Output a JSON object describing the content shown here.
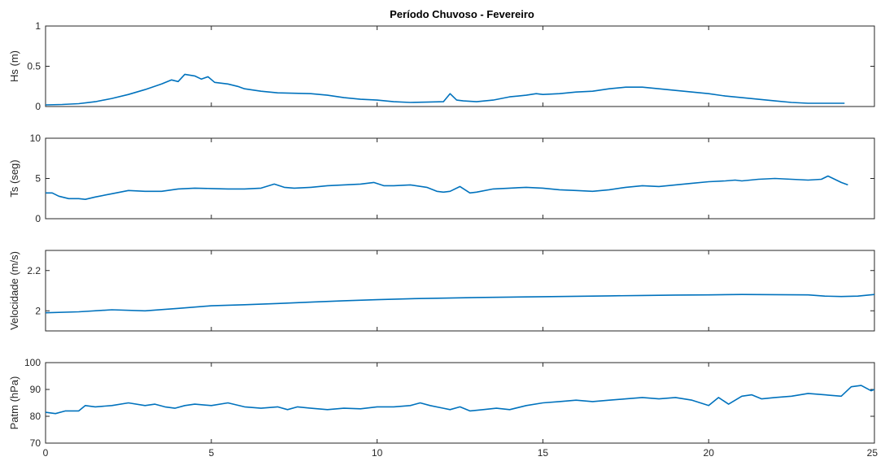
{
  "chart_data": {
    "type": "line",
    "title": "Período Chuvoso - Fevereiro",
    "line_color": "#0072BD",
    "grid": false,
    "xlim": [
      0,
      25
    ],
    "xticks": [
      0,
      5,
      10,
      15,
      20,
      25
    ],
    "panels": [
      {
        "ylabel": "Hs (m)",
        "ylim": [
          0,
          1
        ],
        "yticks": [
          0,
          0.5,
          1
        ],
        "ytick_labels": [
          "0",
          "0.5",
          "1"
        ],
        "x": [
          0,
          0.5,
          1,
          1.5,
          2,
          2.5,
          3,
          3.5,
          3.8,
          4,
          4.2,
          4.5,
          4.7,
          4.9,
          5.1,
          5.5,
          5.8,
          6,
          6.5,
          7,
          7.5,
          8,
          8.5,
          9,
          9.5,
          10,
          10.5,
          11,
          11.5,
          12,
          12.2,
          12.4,
          12.6,
          13,
          13.5,
          14,
          14.5,
          14.8,
          15,
          15.5,
          16,
          16.5,
          17,
          17.5,
          18,
          18.5,
          19,
          19.5,
          20,
          20.5,
          21,
          21.5,
          22,
          22.5,
          23,
          23.5,
          24.1
        ],
        "y": [
          0.02,
          0.025,
          0.035,
          0.06,
          0.1,
          0.15,
          0.21,
          0.28,
          0.33,
          0.31,
          0.4,
          0.38,
          0.34,
          0.37,
          0.3,
          0.28,
          0.25,
          0.22,
          0.19,
          0.17,
          0.165,
          0.16,
          0.14,
          0.11,
          0.09,
          0.08,
          0.06,
          0.05,
          0.055,
          0.06,
          0.16,
          0.08,
          0.07,
          0.06,
          0.08,
          0.12,
          0.14,
          0.16,
          0.15,
          0.16,
          0.18,
          0.19,
          0.22,
          0.24,
          0.24,
          0.22,
          0.2,
          0.18,
          0.16,
          0.13,
          0.11,
          0.09,
          0.07,
          0.05,
          0.04,
          0.04,
          0.04
        ]
      },
      {
        "ylabel": "Ts (seg)",
        "ylim": [
          0,
          10
        ],
        "yticks": [
          0,
          5,
          10
        ],
        "ytick_labels": [
          "0",
          "5",
          "10"
        ],
        "x": [
          0,
          0.2,
          0.4,
          0.7,
          1,
          1.2,
          1.5,
          2,
          2.5,
          3,
          3.5,
          4,
          4.5,
          5,
          5.5,
          6,
          6.5,
          6.9,
          7.2,
          7.5,
          8,
          8.5,
          9,
          9.5,
          9.9,
          10.2,
          10.5,
          11,
          11.5,
          11.8,
          12,
          12.2,
          12.5,
          12.8,
          13,
          13.5,
          14,
          14.5,
          15,
          15.5,
          16,
          16.5,
          17,
          17.5,
          18,
          18.5,
          19,
          19.5,
          20,
          20.5,
          20.8,
          21,
          21.5,
          22,
          22.5,
          23,
          23.4,
          23.6,
          24,
          24.2
        ],
        "y": [
          3.2,
          3.2,
          2.8,
          2.5,
          2.5,
          2.4,
          2.7,
          3.1,
          3.5,
          3.4,
          3.4,
          3.7,
          3.8,
          3.75,
          3.7,
          3.7,
          3.8,
          4.3,
          3.9,
          3.8,
          3.9,
          4.1,
          4.2,
          4.3,
          4.5,
          4.1,
          4.1,
          4.2,
          3.9,
          3.4,
          3.3,
          3.4,
          4.0,
          3.2,
          3.3,
          3.7,
          3.8,
          3.9,
          3.8,
          3.6,
          3.5,
          3.4,
          3.6,
          3.9,
          4.1,
          4.0,
          4.2,
          4.4,
          4.6,
          4.7,
          4.8,
          4.7,
          4.9,
          5.0,
          4.9,
          4.8,
          4.9,
          5.3,
          4.5,
          4.2
        ]
      },
      {
        "ylabel": "Velocidade (m/s)",
        "ylim": [
          1.9,
          2.3
        ],
        "yticks": [
          2,
          2.2
        ],
        "ytick_labels": [
          "2",
          "2.2"
        ],
        "x": [
          0,
          1,
          2,
          3,
          4,
          5,
          6,
          7,
          8,
          9,
          10,
          11,
          12,
          13,
          14,
          15,
          16,
          17,
          18,
          19,
          20,
          21,
          22,
          23,
          23.5,
          24,
          24.5,
          25
        ],
        "y": [
          1.99,
          1.995,
          2.005,
          2.0,
          2.012,
          2.025,
          2.03,
          2.036,
          2.043,
          2.05,
          2.055,
          2.06,
          2.063,
          2.066,
          2.068,
          2.07,
          2.072,
          2.074,
          2.076,
          2.078,
          2.079,
          2.081,
          2.08,
          2.079,
          2.073,
          2.071,
          2.073,
          2.081
        ]
      },
      {
        "ylabel": "Patm (hPa)",
        "ylim": [
          70,
          100
        ],
        "yticks": [
          70,
          80,
          90,
          100
        ],
        "ytick_labels": [
          "70",
          "80",
          "90",
          "100"
        ],
        "x": [
          0,
          0.3,
          0.6,
          1,
          1.2,
          1.5,
          2,
          2.5,
          3,
          3.3,
          3.6,
          3.9,
          4.2,
          4.5,
          5,
          5.5,
          6,
          6.5,
          7,
          7.3,
          7.6,
          8,
          8.5,
          9,
          9.5,
          10,
          10.5,
          11,
          11.3,
          11.6,
          12,
          12.2,
          12.5,
          12.8,
          13.2,
          13.6,
          14,
          14.5,
          15,
          15.5,
          16,
          16.5,
          17,
          17.5,
          18,
          18.5,
          19,
          19.5,
          20,
          20.3,
          20.6,
          21,
          21.3,
          21.6,
          22,
          22.5,
          23,
          23.5,
          24,
          24.3,
          24.6,
          24.9,
          25
        ],
        "y": [
          81.5,
          81,
          82,
          82,
          84,
          83.5,
          84,
          85,
          84,
          84.5,
          83.5,
          83,
          84,
          84.5,
          84,
          85,
          83.5,
          83,
          83.5,
          82.5,
          83.5,
          83,
          82.5,
          83,
          82.8,
          83.5,
          83.5,
          84,
          85,
          84,
          83,
          82.5,
          83.5,
          82,
          82.5,
          83,
          82.5,
          84,
          85,
          85.5,
          86,
          85.5,
          86,
          86.5,
          87,
          86.5,
          87,
          86,
          84,
          87,
          84.5,
          87.5,
          88,
          86.5,
          87,
          87.5,
          88.5,
          88,
          87.5,
          91,
          91.5,
          89.5,
          90
        ]
      }
    ]
  }
}
